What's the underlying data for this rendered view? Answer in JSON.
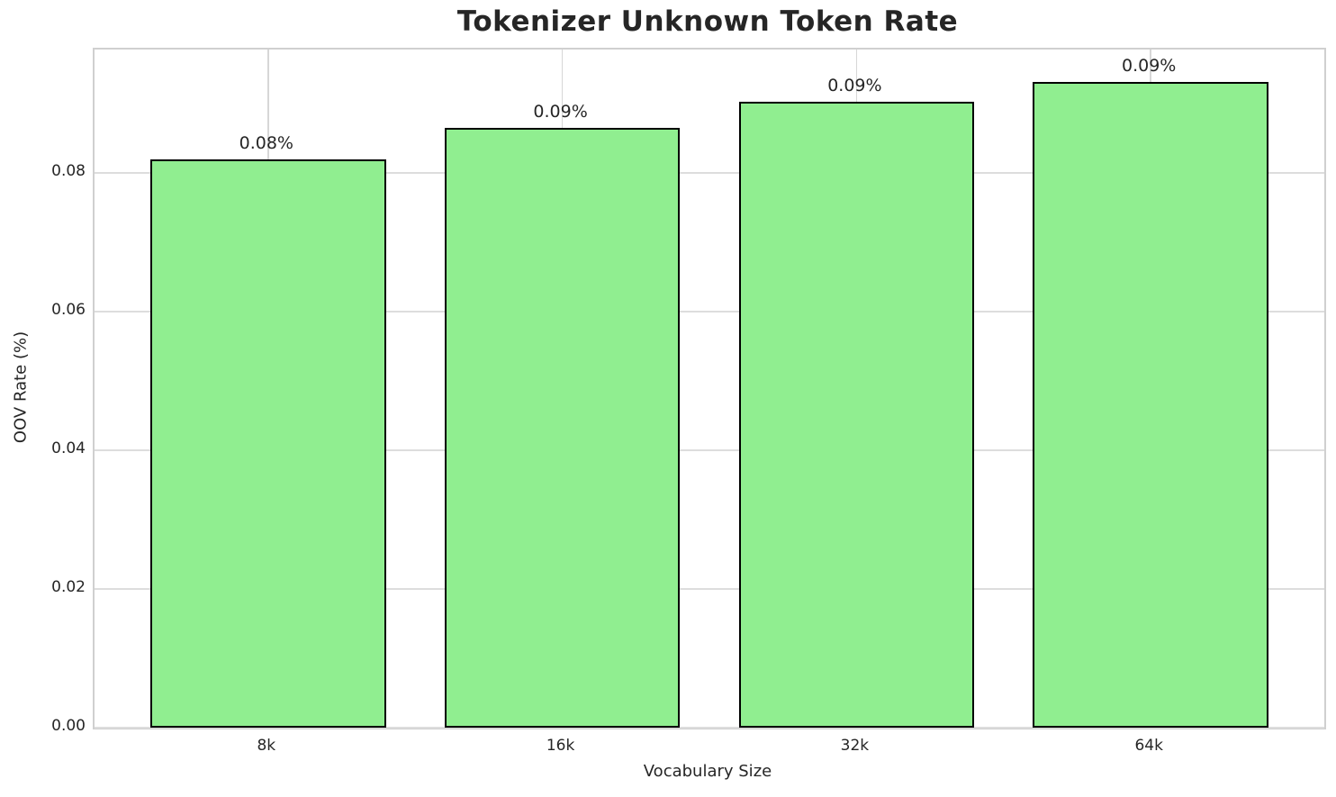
{
  "title": "Tokenizer Unknown Token Rate",
  "chart_data": {
    "type": "bar",
    "title": "Tokenizer Unknown Token Rate",
    "xlabel": "Vocabulary Size",
    "ylabel": "OOV Rate (%)",
    "categories": [
      "8k",
      "16k",
      "32k",
      "64k"
    ],
    "values": [
      0.082,
      0.0865,
      0.0903,
      0.0931
    ],
    "bar_labels": [
      "0.08%",
      "0.09%",
      "0.09%",
      "0.09%"
    ],
    "ylim": [
      0,
      0.0978
    ],
    "yticks": [
      0.0,
      0.02,
      0.04,
      0.06,
      0.08
    ],
    "ytick_labels": [
      "0.00",
      "0.02",
      "0.04",
      "0.06",
      "0.08"
    ],
    "grid": true,
    "legend": "none",
    "colors": {
      "bar_fill": "#90EE90",
      "bar_edge": "#000000",
      "grid": "#dddddd",
      "spine": "#d0d0d0",
      "text": "#262626",
      "background": "#ffffff"
    }
  }
}
